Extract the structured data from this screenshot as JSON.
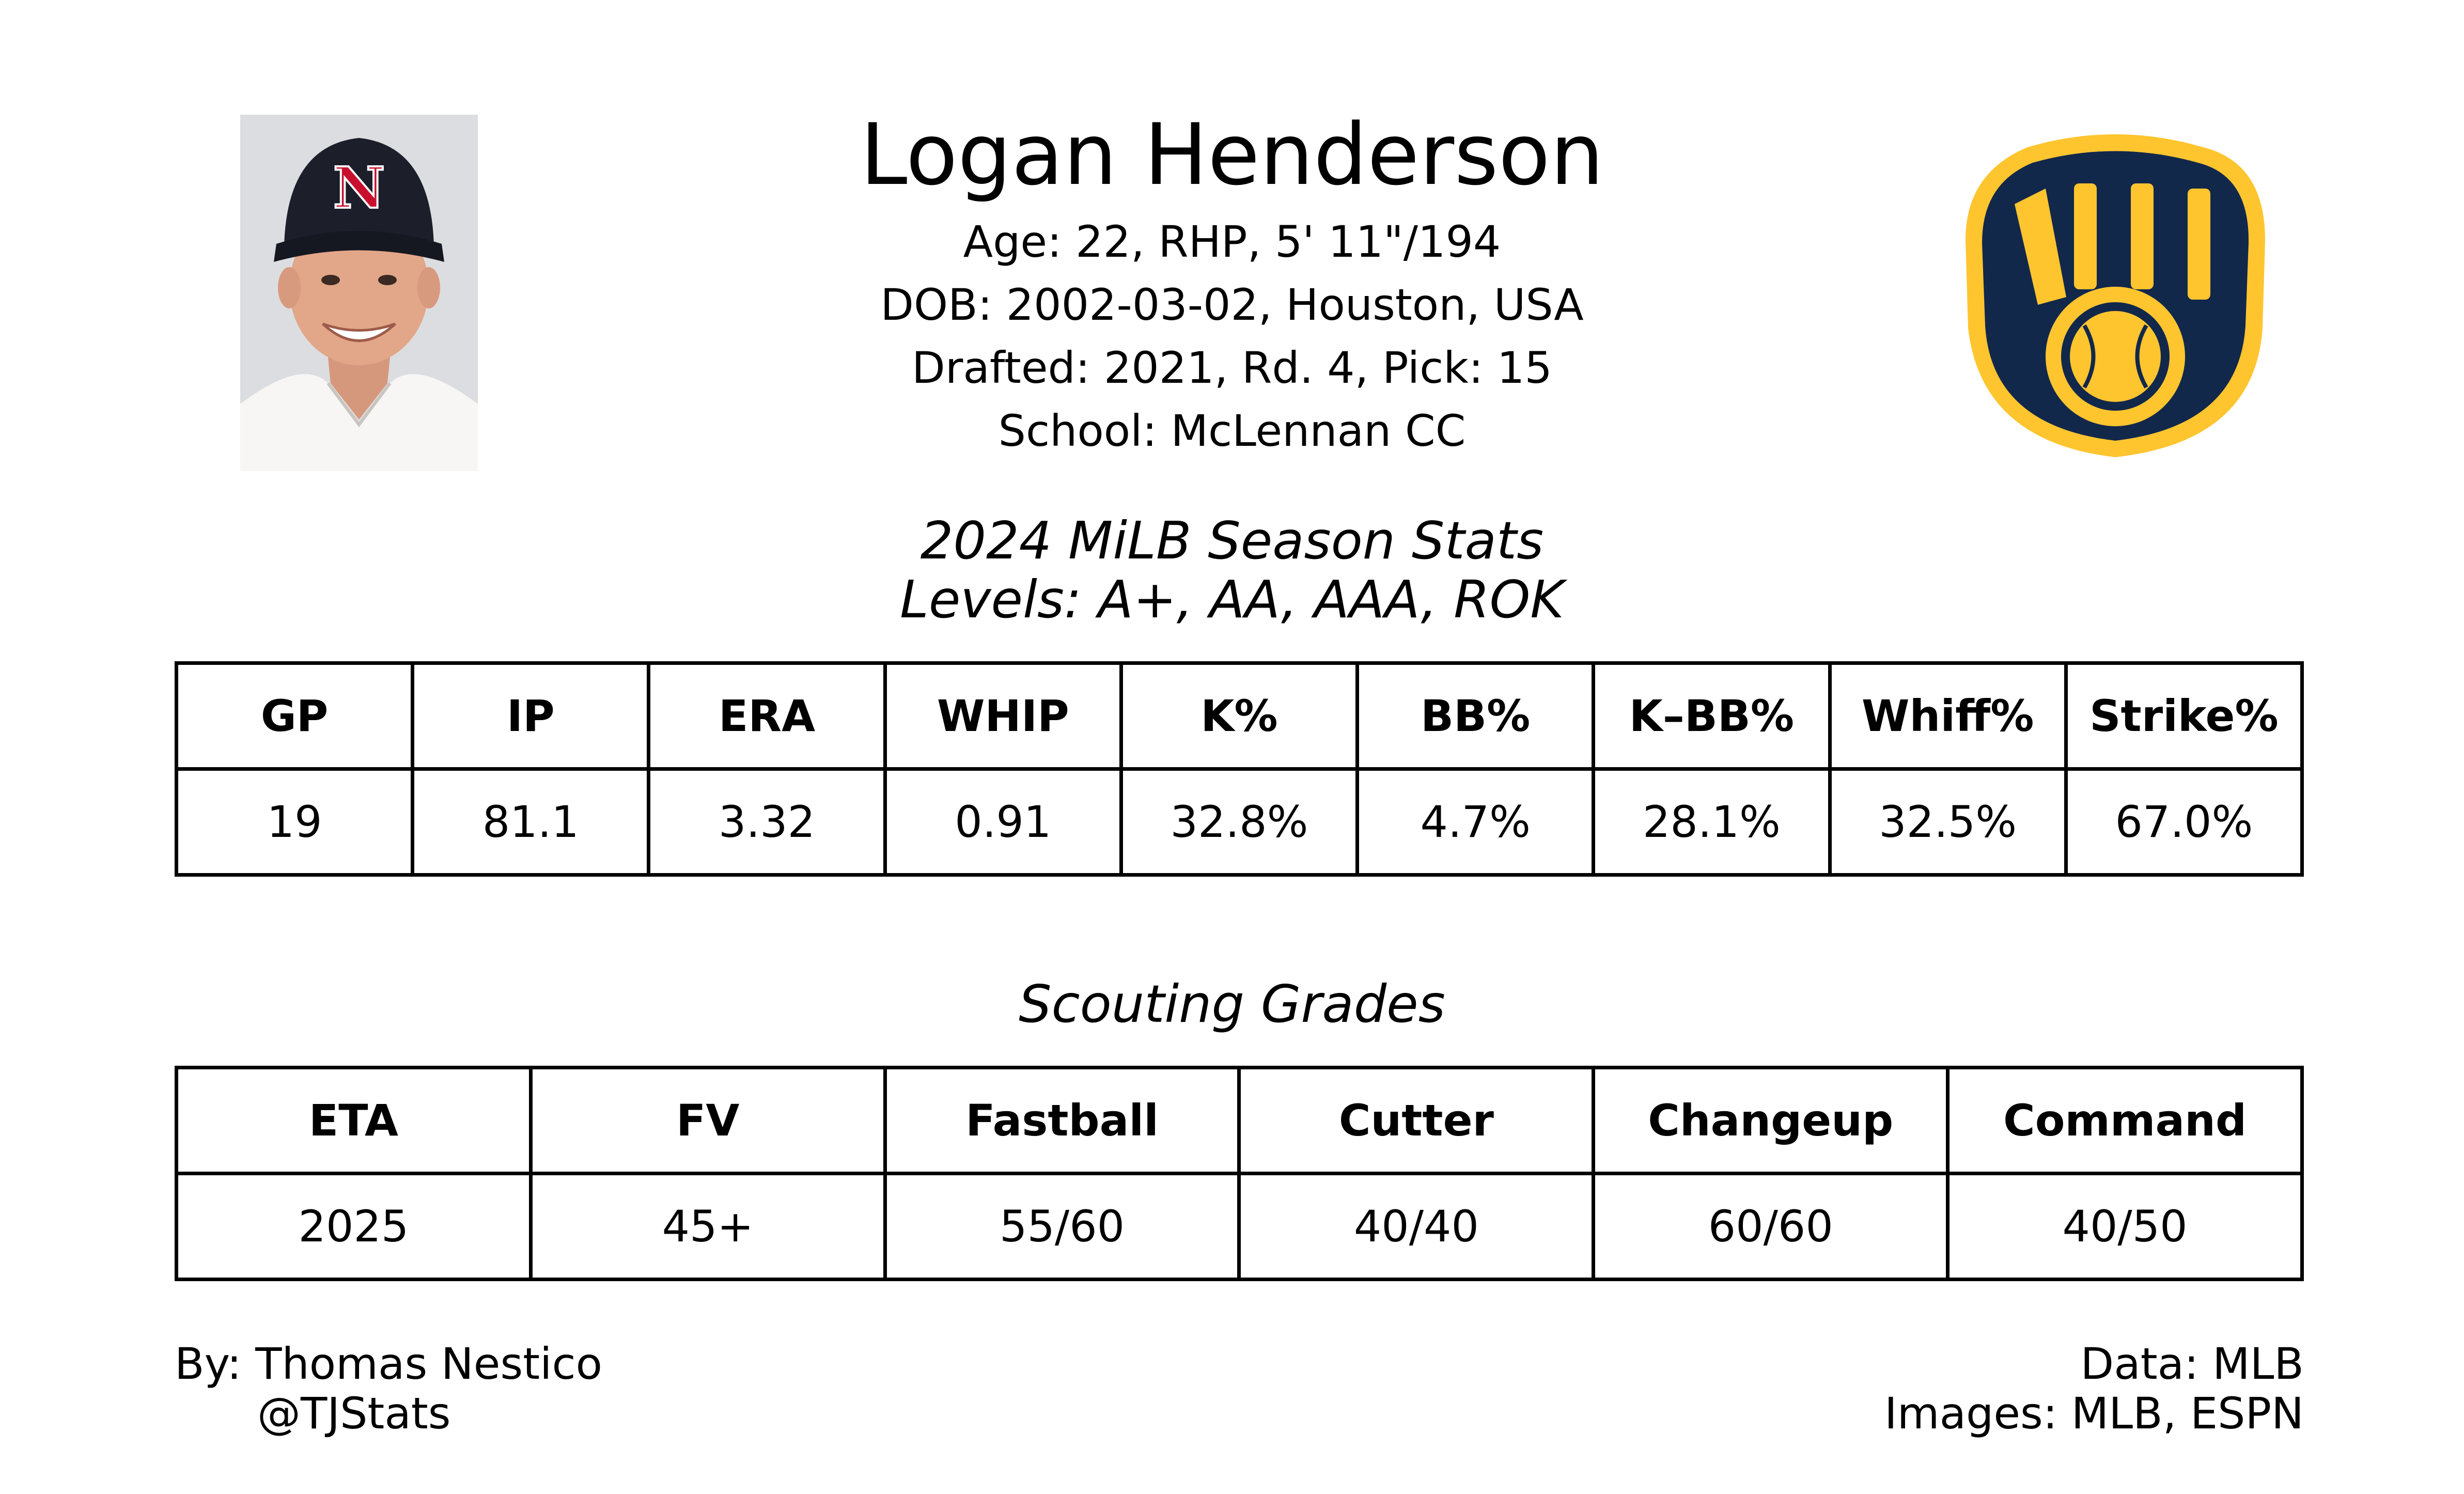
{
  "player": {
    "name": "Logan Henderson",
    "bio": [
      "Age: 22, RHP, 5' 11\"/194",
      "DOB: 2002-03-02, Houston, USA",
      "Drafted: 2021, Rd. 4, Pick: 15",
      "School: McLennan CC"
    ]
  },
  "headshot": {
    "icon": "player-headshot",
    "cap_letter": "N"
  },
  "team_logo": {
    "icon": "milwaukee-brewers-ball-in-glove-logo",
    "navy": "#12284b",
    "gold": "#ffc52f"
  },
  "season_stats": {
    "title": "2024 MiLB Season Stats",
    "levels": "Levels: A+, AA, AAA, ROK",
    "headers": [
      "GP",
      "IP",
      "ERA",
      "WHIP",
      "K%",
      "BB%",
      "K–BB%",
      "Whiff%",
      "Strike%"
    ],
    "values": [
      "19",
      "81.1",
      "3.32",
      "0.91",
      "32.8%",
      "4.7%",
      "28.1%",
      "32.5%",
      "67.0%"
    ]
  },
  "scouting": {
    "title": "Scouting Grades",
    "headers": [
      "ETA",
      "FV",
      "Fastball",
      "Cutter",
      "Changeup",
      "Command"
    ],
    "values": [
      "2025",
      "45+",
      "55/60",
      "40/40",
      "60/60",
      "40/50"
    ]
  },
  "footer": {
    "author": "By: Thomas Nestico",
    "handle": "@TJStats",
    "data_source": "Data: MLB",
    "images_source": "Images: MLB, ESPN"
  }
}
